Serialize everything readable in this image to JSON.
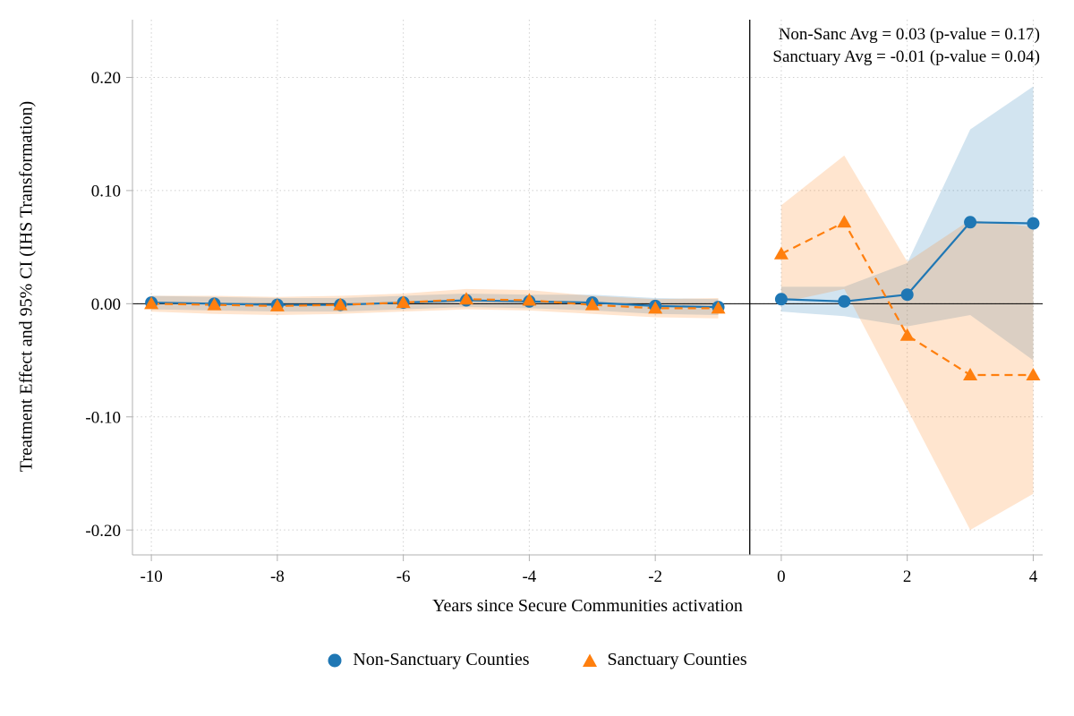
{
  "annotation": {
    "line1": "Non-Sanc Avg = 0.03 (p-value = 0.17)",
    "line2": "Sanctuary Avg = -0.01 (p-value = 0.04)"
  },
  "colors": {
    "non_sanctuary": "#1f77b4",
    "sanctuary": "#ff7f0e",
    "grid": "#cfcfcf",
    "axis": "#b0b0b0",
    "reference_line": "#000000"
  },
  "chart_data": {
    "type": "line",
    "title": "",
    "xlabel": "Years since Secure Communities activation",
    "ylabel": "Treatment Effect and 95% CI (IHS Transformation)",
    "xlim": [
      -10.3,
      4.15
    ],
    "ylim": [
      -0.222,
      0.251
    ],
    "x_ticks": [
      -10,
      -8,
      -6,
      -4,
      -2,
      0,
      2,
      4
    ],
    "y_ticks": [
      -0.2,
      -0.1,
      0.0,
      0.1,
      0.2
    ],
    "y_tick_labels": [
      "-0.20",
      "-0.10",
      "0.00",
      "0.10",
      "0.20"
    ],
    "grid": "dotted",
    "vline_x": -0.5,
    "hline_y": 0,
    "legend_position": "bottom",
    "x": [
      -10,
      -9,
      -8,
      -7,
      -6,
      -5,
      -4,
      -3,
      -2,
      -1,
      0,
      1,
      2,
      3,
      4
    ],
    "pre_period_last_index": 9,
    "series": [
      {
        "name": "Non-Sanctuary Counties",
        "color": "#1f77b4",
        "marker": "circle",
        "line_style": "solid",
        "y": [
          0.001,
          0.0,
          -0.001,
          -0.001,
          0.001,
          0.003,
          0.002,
          0.001,
          -0.002,
          -0.003,
          0.004,
          0.002,
          0.008,
          0.072,
          0.071
        ],
        "ci_lower": [
          -0.005,
          -0.006,
          -0.007,
          -0.007,
          -0.005,
          -0.003,
          -0.004,
          -0.006,
          -0.009,
          -0.01,
          -0.007,
          -0.011,
          -0.02,
          -0.01,
          -0.05
        ],
        "ci_upper": [
          0.007,
          0.006,
          0.005,
          0.005,
          0.007,
          0.009,
          0.008,
          0.008,
          0.005,
          0.004,
          0.015,
          0.015,
          0.036,
          0.154,
          0.192
        ]
      },
      {
        "name": "Sanctuary Counties",
        "color": "#ff7f0e",
        "marker": "triangle",
        "line_style": "dashed",
        "y": [
          0.0,
          -0.001,
          -0.002,
          -0.001,
          0.001,
          0.004,
          0.003,
          -0.001,
          -0.004,
          -0.004,
          0.044,
          0.072,
          -0.028,
          -0.063,
          -0.063
        ],
        "ci_lower": [
          -0.007,
          -0.009,
          -0.01,
          -0.009,
          -0.007,
          -0.005,
          -0.006,
          -0.009,
          -0.012,
          -0.013,
          0.001,
          0.013,
          -0.093,
          -0.2,
          -0.168
        ],
        "ci_upper": [
          0.007,
          0.007,
          0.006,
          0.007,
          0.009,
          0.013,
          0.012,
          0.007,
          0.004,
          0.005,
          0.087,
          0.131,
          0.037,
          0.074,
          0.068
        ]
      }
    ]
  }
}
